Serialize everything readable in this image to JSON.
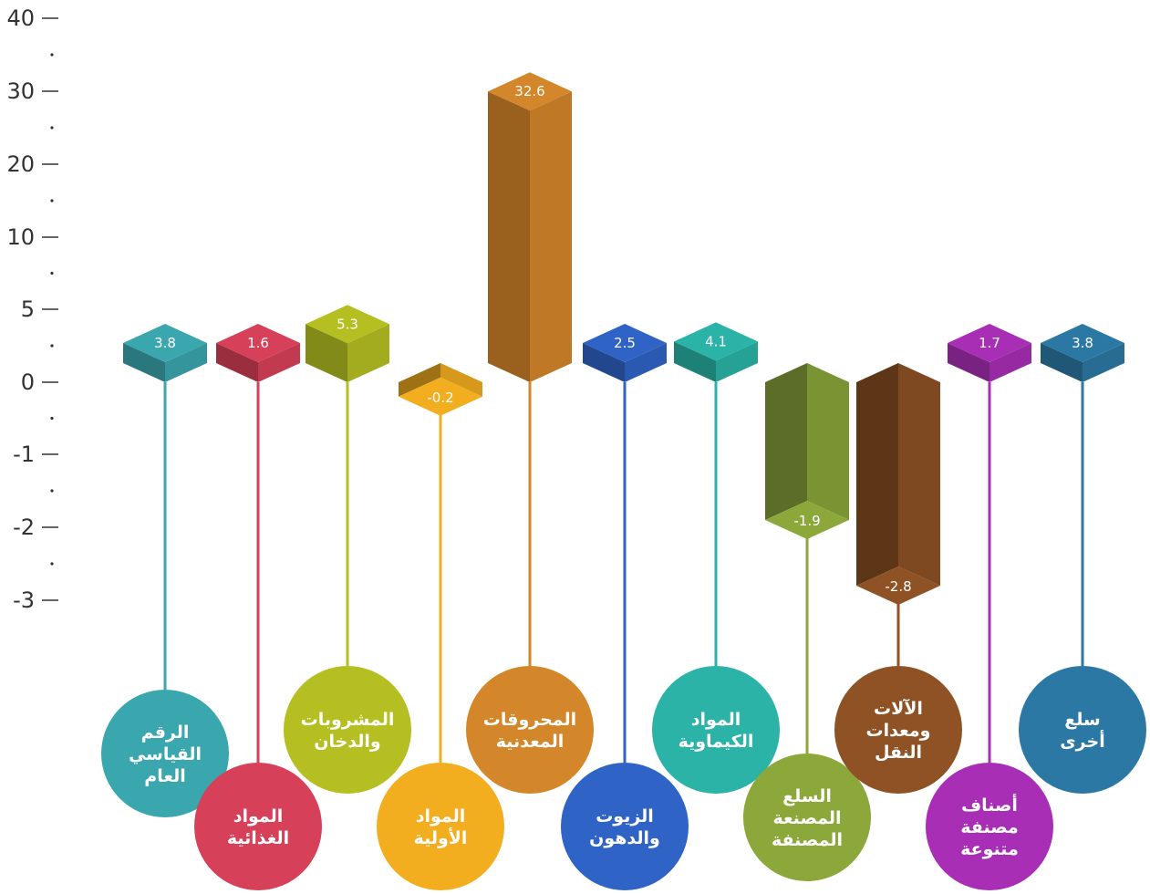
{
  "chart_data": {
    "type": "bar",
    "yticks": [
      "40",
      "30",
      "20",
      "10",
      "5",
      "0",
      "-1",
      "-2",
      "-3"
    ],
    "grid": false,
    "legend": "none",
    "categories": [
      [
        "الرقم",
        "القياسي",
        "العام"
      ],
      [
        "المواد",
        "الغذائية"
      ],
      [
        "المشروبات",
        "والدخان"
      ],
      [
        "المواد",
        "الأولية"
      ],
      [
        "المحروقات",
        "المعدنية"
      ],
      [
        "الزيوت",
        "والدهون"
      ],
      [
        "المواد",
        "الكيماوية"
      ],
      [
        "السلع",
        "المصنعة",
        "المصنفة"
      ],
      [
        "الآلات",
        "ومعدات",
        "النقل"
      ],
      [
        "أصناف",
        "مصنفة",
        "متنوعة"
      ],
      [
        "سلع",
        "أخرى"
      ]
    ],
    "values": [
      3.8,
      1.6,
      5.3,
      -0.2,
      32.6,
      2.5,
      4.1,
      -1.9,
      -2.8,
      1.7,
      3.8
    ],
    "value_labels": [
      "3.8",
      "1.6",
      "5.3",
      "-0.2",
      "32.6",
      "2.5",
      "4.1",
      "-1.9",
      "-2.8",
      "1.7",
      "3.8"
    ],
    "colors": [
      "#3aa6ae",
      "#d64058",
      "#b5bf22",
      "#f3ae20",
      "#d4862a",
      "#2f63c6",
      "#2ab3a6",
      "#8ca83a",
      "#8f5224",
      "#a82fb5",
      "#2c78a4"
    ]
  }
}
